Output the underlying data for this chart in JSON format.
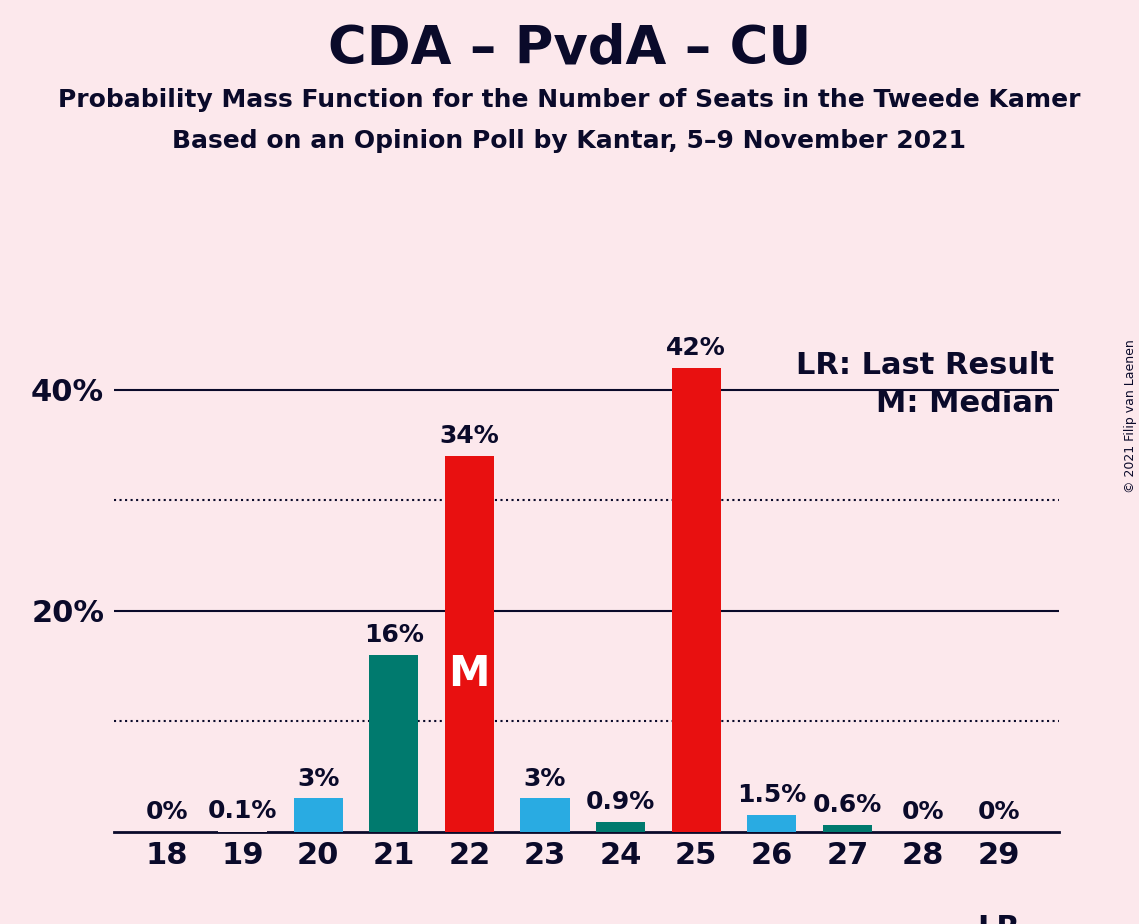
{
  "title": "CDA – PvdA – CU",
  "subtitle1": "Probability Mass Function for the Number of Seats in the Tweede Kamer",
  "subtitle2": "Based on an Opinion Poll by Kantar, 5–9 November 2021",
  "copyright": "© 2021 Filip van Laenen",
  "legend_lr": "LR: Last Result",
  "legend_m": "M: Median",
  "seats": [
    18,
    19,
    20,
    21,
    22,
    23,
    24,
    25,
    26,
    27,
    28,
    29
  ],
  "values": [
    0.0,
    0.1,
    3.0,
    16.0,
    34.0,
    3.0,
    0.9,
    42.0,
    1.5,
    0.6,
    0.0,
    0.0
  ],
  "labels": [
    "0%",
    "0.1%",
    "3%",
    "16%",
    "34%",
    "3%",
    "0.9%",
    "42%",
    "1.5%",
    "0.6%",
    "0%",
    "0%"
  ],
  "colors": [
    "#fce8ec",
    "#fce8ec",
    "#29ABE2",
    "#007A6E",
    "#E81010",
    "#29ABE2",
    "#007A6E",
    "#E81010",
    "#29ABE2",
    "#007A6E",
    "#fce8ec",
    "#E81010"
  ],
  "median_seat": 22,
  "lr_seat": 29,
  "background_color": "#fce8ec",
  "bar_width": 0.65,
  "ylim": [
    0,
    46
  ],
  "major_yticks": [
    0,
    20,
    40
  ],
  "major_ytick_labels": [
    "",
    "20%",
    "40%"
  ],
  "solid_hlines": [
    20,
    40
  ],
  "dotted_hlines": [
    10,
    30
  ],
  "title_fontsize": 38,
  "subtitle_fontsize": 18,
  "axis_fontsize": 22,
  "label_fontsize": 18,
  "label_color": "#0a0a2a",
  "legend_fontsize": 22,
  "median_label_fontsize": 30,
  "lr_label_fontsize": 22,
  "text_color": "#0a0a2a"
}
